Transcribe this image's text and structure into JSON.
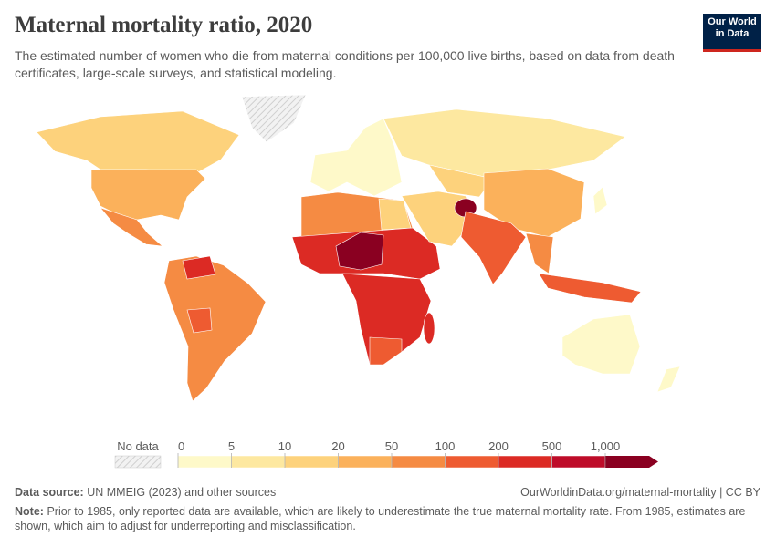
{
  "header": {
    "title": "Maternal mortality ratio, 2020",
    "subtitle": "The estimated number of women who die from maternal conditions per 100,000 live births, based on data from death certificates, large-scale surveys, and statistical modeling.",
    "logo": [
      "Our World",
      "in Data"
    ]
  },
  "legend": {
    "no_data_label": "No data",
    "ticks": [
      0,
      5,
      10,
      20,
      50,
      100,
      200,
      500,
      {
        "value": 1000,
        "label": "1,000"
      }
    ],
    "colors": [
      "#fef9c9",
      "#fde8a0",
      "#fdd27c",
      "#fbb15b",
      "#f58b43",
      "#ee5b31",
      "#dc2a24",
      "#be0c29",
      "#8a0021"
    ]
  },
  "footer": {
    "source_label": "Data source:",
    "source": "UN MMEIG (2023) and other sources",
    "url": "OurWorldinData.org/maternal-mortality | CC BY",
    "note_label": "Note:",
    "note": "Prior to 1985, only reported data are available, which are likely to underestimate the true maternal mortality rate. From 1985, estimates are shown, which aim to adjust for underreporting and misclassification."
  }
}
